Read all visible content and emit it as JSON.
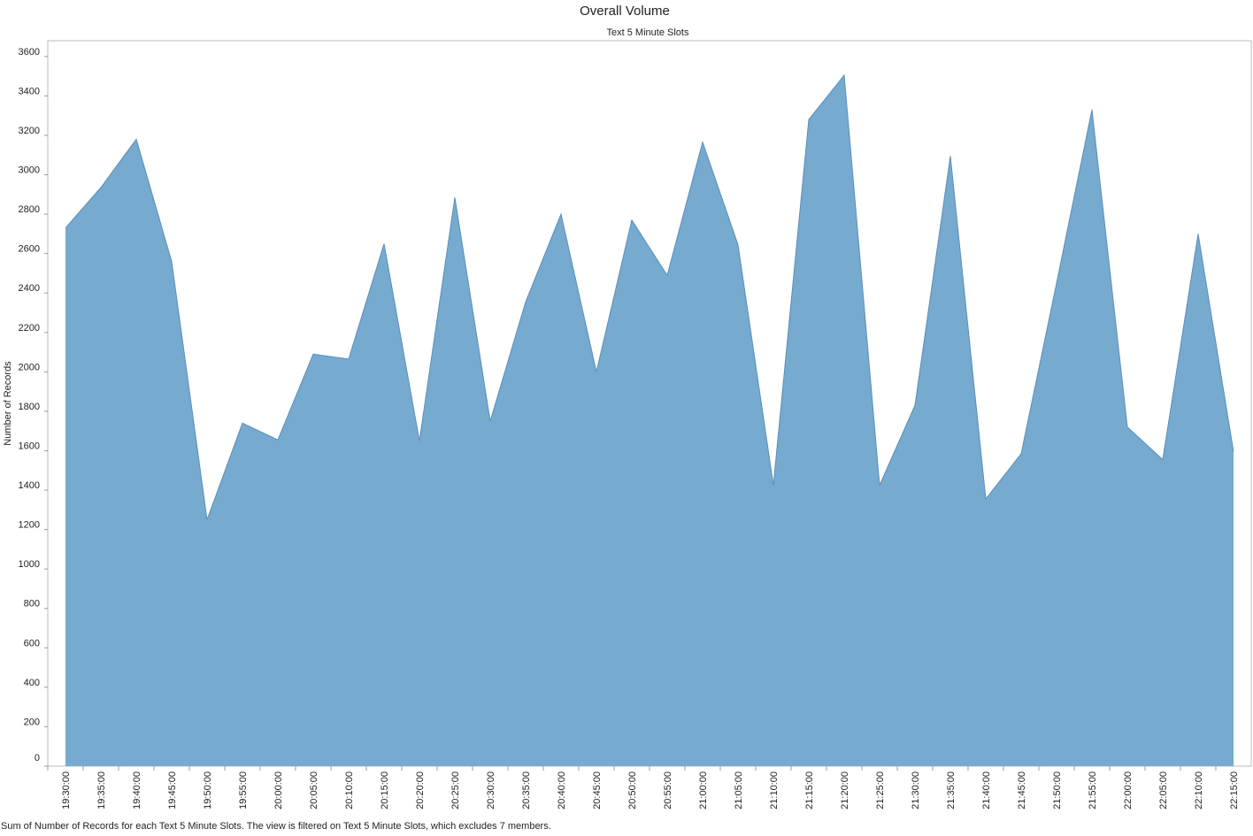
{
  "chart_data": {
    "type": "area",
    "title": "Overall Volume",
    "subtitle": "Text 5 Minute Slots",
    "y_label": "Number of Records",
    "footnote": "Sum of Number of Records for each Text 5 Minute Slots. The view is filtered on Text 5 Minute Slots, which excludes 7 members.",
    "categories": [
      "19:30:00",
      "19:35:00",
      "19:40:00",
      "19:45:00",
      "19:50:00",
      "19:55:00",
      "20:00:00",
      "20:05:00",
      "20:10:00",
      "20:15:00",
      "20:20:00",
      "20:25:00",
      "20:30:00",
      "20:35:00",
      "20:40:00",
      "20:45:00",
      "20:50:00",
      "20:55:00",
      "21:00:00",
      "21:05:00",
      "21:10:00",
      "21:15:00",
      "21:20:00",
      "21:25:00",
      "21:30:00",
      "21:35:00",
      "21:40:00",
      "21:45:00",
      "21:50:00",
      "21:55:00",
      "22:00:00",
      "22:05:00",
      "22:10:00",
      "22:15:00"
    ],
    "values": [
      2730,
      2935,
      3180,
      2560,
      1250,
      1740,
      1655,
      2090,
      2065,
      2650,
      1650,
      2885,
      1750,
      2355,
      2800,
      2000,
      2770,
      2490,
      3165,
      2645,
      1425,
      3280,
      3505,
      1425,
      1830,
      3095,
      1355,
      1585,
      2450,
      3330,
      1720,
      1555,
      2700,
      1595
    ],
    "color": "#76aace",
    "line_color": "#5a8fbd",
    "ylim": [
      0,
      3680
    ],
    "yticks": [
      0,
      200,
      400,
      600,
      800,
      1000,
      1200,
      1400,
      1600,
      1800,
      2000,
      2200,
      2400,
      2600,
      2800,
      3000,
      3200,
      3400,
      3600
    ],
    "grid": false
  }
}
